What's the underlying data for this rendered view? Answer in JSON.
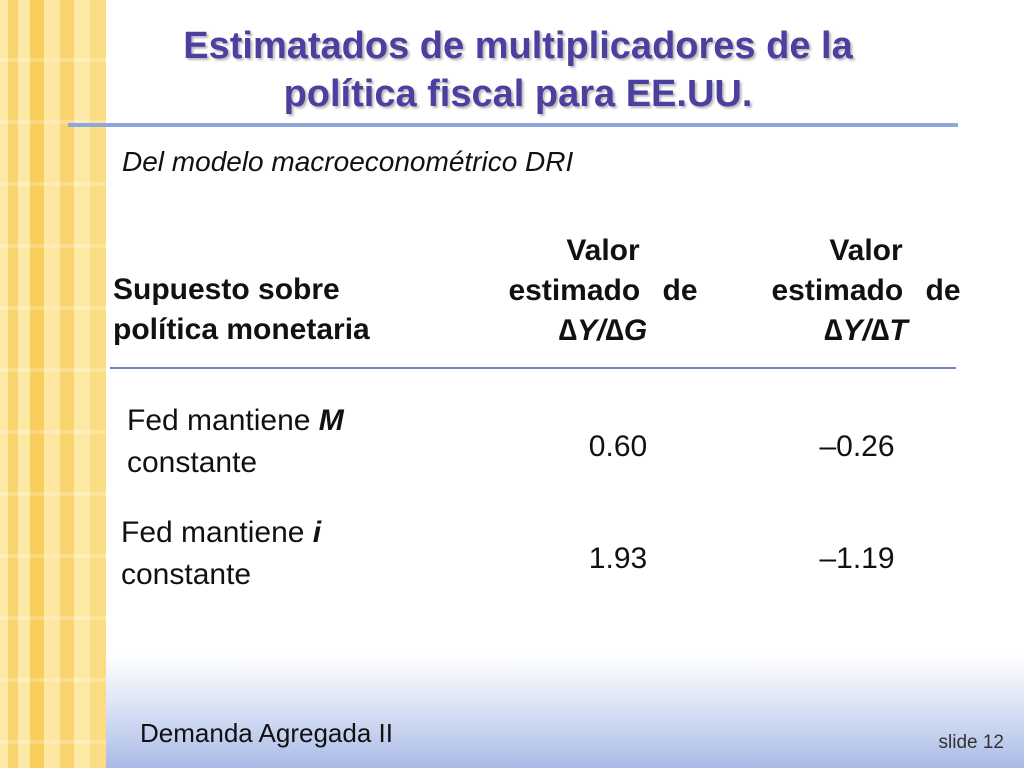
{
  "slide": {
    "title_line1": "Estimatados de multiplicadores de la",
    "title_line2": "política fiscal para EE.UU.",
    "subtitle": "Del modelo macroeconométrico DRI"
  },
  "table": {
    "headers": {
      "assumption_line1": "Supuesto sobre",
      "assumption_line2": "política monetaria",
      "col_g_line1": "Valor",
      "col_g_line2": "estimado de",
      "col_g_ratio": "∆Y/∆G",
      "col_t_line1": "Valor",
      "col_t_line2": "estimado de",
      "col_t_ratio": "∆Y/∆T"
    },
    "rows": [
      {
        "label_prefix": "Fed mantiene ",
        "label_var": "M",
        "label_suffix": "constante",
        "value_g": "0.60",
        "value_t": "–0.26"
      },
      {
        "label_prefix": "Fed mantiene ",
        "label_var": "i",
        "label_suffix": "constante",
        "value_g": "1.93",
        "value_t": "–1.19"
      }
    ]
  },
  "footer": {
    "title": "Demanda Agregada II",
    "slide_number": "slide 12"
  },
  "colors": {
    "title": "#4b3fa0",
    "rule": "#8ea7dc",
    "side_band": "#f9d46e",
    "bottom_band": "#a9bbe6"
  }
}
